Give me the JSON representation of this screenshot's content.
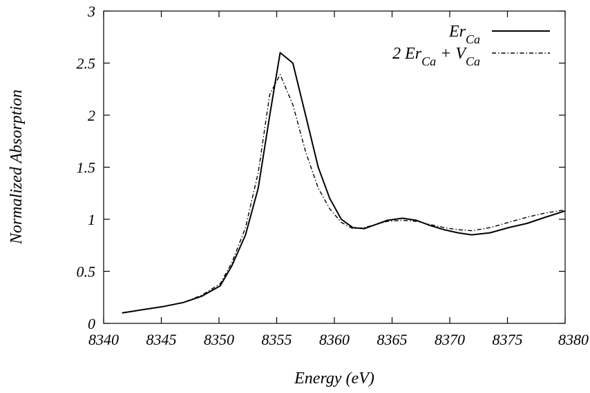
{
  "chart_data": {
    "type": "line",
    "xlabel": "Energy (eV)",
    "ylabel": "Normalized Absorption",
    "xlim": [
      8340,
      8380
    ],
    "ylim": [
      0,
      3
    ],
    "xticks": [
      8340,
      8345,
      8350,
      8355,
      8360,
      8365,
      8370,
      8375,
      8380
    ],
    "yticks": [
      0,
      0.5,
      1,
      1.5,
      2,
      2.5,
      3
    ],
    "grid": false,
    "legend_position": "top-right",
    "series": [
      {
        "name": "Er_Ca",
        "label_parts": [
          {
            "t": "Er",
            "sub": "Ca"
          }
        ],
        "style": "solid",
        "x": [
          8341.6,
          8343.3,
          8345.1,
          8346.9,
          8348.5,
          8350.1,
          8351.1,
          8352.3,
          8353.4,
          8354.4,
          8355.3,
          8356.4,
          8357.5,
          8358.6,
          8359.6,
          8360.6,
          8361.6,
          8362.6,
          8363.6,
          8364.6,
          8365.9,
          8367.1,
          8368.3,
          8369.5,
          8370.7,
          8371.9,
          8373.5,
          8375.1,
          8376.7,
          8378.3,
          8380.0
        ],
        "y": [
          0.1,
          0.13,
          0.16,
          0.2,
          0.26,
          0.36,
          0.55,
          0.85,
          1.3,
          2.0,
          2.6,
          2.5,
          2.0,
          1.5,
          1.2,
          1.0,
          0.92,
          0.91,
          0.95,
          0.99,
          1.01,
          0.99,
          0.94,
          0.9,
          0.87,
          0.85,
          0.87,
          0.92,
          0.96,
          1.02,
          1.08
        ]
      },
      {
        "name": "2 Er_Ca + V_Ca",
        "label_parts": [
          {
            "t": "2 Er",
            "sub": "Ca"
          },
          {
            "t": " + V",
            "sub": "Ca"
          }
        ],
        "style": "dash-dot",
        "x": [
          8341.6,
          8343.3,
          8345.1,
          8346.9,
          8348.5,
          8350.1,
          8351.1,
          8352.3,
          8353.4,
          8354.4,
          8355.3,
          8356.4,
          8357.5,
          8358.6,
          8359.6,
          8360.6,
          8361.6,
          8362.6,
          8363.6,
          8364.6,
          8365.9,
          8367.1,
          8368.3,
          8369.5,
          8370.7,
          8371.9,
          8373.5,
          8375.1,
          8376.7,
          8378.3,
          8380.0
        ],
        "y": [
          0.1,
          0.13,
          0.16,
          0.2,
          0.27,
          0.38,
          0.58,
          0.92,
          1.45,
          2.2,
          2.39,
          2.1,
          1.65,
          1.3,
          1.1,
          0.97,
          0.91,
          0.92,
          0.95,
          0.98,
          0.99,
          0.98,
          0.95,
          0.92,
          0.9,
          0.89,
          0.92,
          0.97,
          1.02,
          1.06,
          1.09
        ]
      }
    ]
  }
}
